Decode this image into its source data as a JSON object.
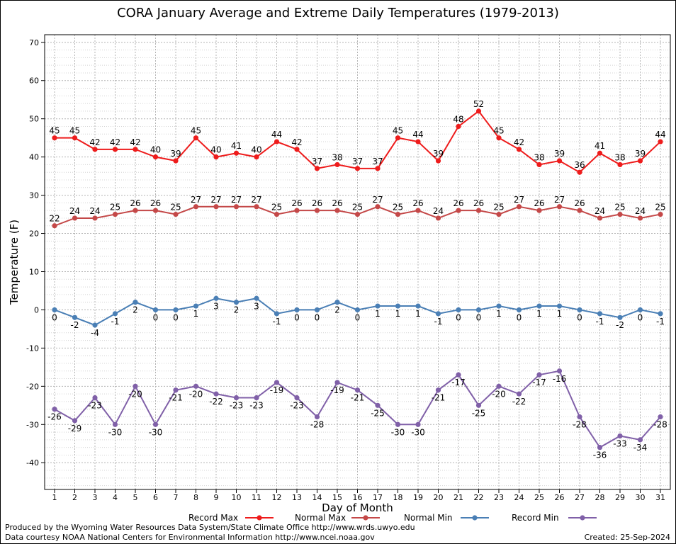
{
  "chart_data": {
    "type": "line",
    "title": "CORA January Average and Extreme Daily Temperatures (1979-2013)",
    "xlabel": "Day of Month",
    "ylabel": "Temperature (F)",
    "ylim": [
      -47,
      72
    ],
    "yticks": [
      -40,
      -30,
      -20,
      -10,
      0,
      10,
      20,
      30,
      40,
      50,
      60,
      70
    ],
    "x": [
      1,
      2,
      3,
      4,
      5,
      6,
      7,
      8,
      9,
      10,
      11,
      12,
      13,
      14,
      15,
      16,
      17,
      18,
      19,
      20,
      21,
      22,
      23,
      24,
      25,
      26,
      27,
      28,
      29,
      30,
      31
    ],
    "grid": true,
    "legend_position": "bottom",
    "series": [
      {
        "name": "Record Max",
        "color": "#ee1c1c",
        "label_position": "above",
        "values": [
          45,
          45,
          42,
          42,
          42,
          40,
          39,
          45,
          40,
          41,
          40,
          44,
          42,
          37,
          38,
          37,
          37,
          45,
          44,
          39,
          48,
          52,
          45,
          42,
          38,
          39,
          36,
          41,
          38,
          39,
          44
        ]
      },
      {
        "name": "Normal Max",
        "color": "#c44848",
        "label_position": "above",
        "values": [
          22,
          24,
          24,
          25,
          26,
          26,
          25,
          27,
          27,
          27,
          27,
          25,
          26,
          26,
          26,
          25,
          27,
          25,
          26,
          24,
          26,
          26,
          25,
          27,
          26,
          27,
          26,
          24,
          25,
          24,
          25
        ]
      },
      {
        "name": "Normal Min",
        "color": "#4a7fb5",
        "label_position": "below",
        "values": [
          0,
          -2,
          -4,
          -1,
          2,
          0,
          0,
          1,
          3,
          2,
          3,
          -1,
          0,
          0,
          2,
          0,
          1,
          1,
          1,
          -1,
          0,
          0,
          1,
          0,
          1,
          1,
          0,
          -1,
          -2,
          0,
          -1
        ]
      },
      {
        "name": "Record Min",
        "color": "#8060a8",
        "label_position": "below",
        "values": [
          -26,
          -29,
          -23,
          -30,
          -20,
          -30,
          -21,
          -20,
          -22,
          -23,
          -23,
          -19,
          -23,
          -28,
          -19,
          -21,
          -25,
          -30,
          -30,
          -21,
          -17,
          -25,
          -20,
          -22,
          -17,
          -16,
          -28,
          -36,
          -33,
          -34,
          -28
        ]
      }
    ]
  },
  "footer": {
    "produced_by": "Produced by the Wyoming Water Resources Data System/State Climate Office http://www.wrds.uwyo.edu",
    "courtesy": "Data courtesy NOAA National Centers for Environmental Information http://www.ncei.noaa.gov",
    "created": "Created:  25-Sep-2024"
  }
}
